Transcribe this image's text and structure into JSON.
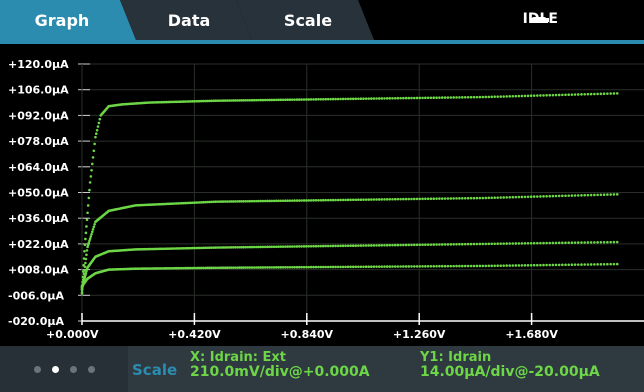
{
  "tabs": [
    {
      "label": "Graph",
      "active": true
    },
    {
      "label": "Data",
      "active": false
    },
    {
      "label": "Scale",
      "active": false
    }
  ],
  "status": {
    "label": "IDLE",
    "icon": "minus-icon"
  },
  "colors": {
    "accent": "#2c8cb0",
    "trace": "#6dd646",
    "tab_inactive": "#28323a"
  },
  "chart_data": {
    "type": "scatter",
    "title": "",
    "xlabel": "",
    "ylabel": "",
    "xlim": [
      0.0,
      2.1
    ],
    "ylim": [
      -20.0,
      120.0
    ],
    "x_tick_labels": [
      "+0.000V",
      "+0.420V",
      "+0.840V",
      "+1.260V",
      "+1.680V"
    ],
    "x_ticks": [
      0.0,
      0.42,
      0.84,
      1.26,
      1.68
    ],
    "y_tick_labels": [
      "+120.0µA",
      "+106.0µA",
      "+092.0µA",
      "+078.0µA",
      "+064.0µA",
      "+050.0µA",
      "+036.0µA",
      "+022.0µA",
      "+008.0µA",
      "-006.0µA",
      "-020.0µA"
    ],
    "y_ticks": [
      120,
      106,
      92,
      78,
      64,
      50,
      36,
      22,
      8,
      -6,
      -20
    ],
    "grid": true,
    "series": [
      {
        "x": [
          0.0,
          0.01,
          0.03,
          0.05,
          0.07,
          0.1,
          0.15,
          0.25,
          0.5,
          1.0,
          1.5,
          2.0
        ],
        "values": [
          -5,
          20,
          55,
          80,
          92,
          97,
          98,
          99,
          100,
          101,
          102,
          104
        ]
      },
      {
        "x": [
          0.0,
          0.02,
          0.05,
          0.1,
          0.2,
          0.5,
          1.0,
          1.5,
          2.0
        ],
        "values": [
          -3,
          20,
          34,
          40,
          43,
          45,
          46,
          47,
          49
        ]
      },
      {
        "x": [
          0.0,
          0.02,
          0.05,
          0.1,
          0.2,
          0.5,
          1.0,
          1.5,
          2.0
        ],
        "values": [
          -2,
          9,
          15,
          18,
          19,
          20,
          21,
          22,
          23
        ]
      },
      {
        "x": [
          0.0,
          0.02,
          0.05,
          0.1,
          0.2,
          0.5,
          1.0,
          1.5,
          2.0
        ],
        "values": [
          -1,
          3,
          6,
          8,
          8.5,
          9,
          9.5,
          10,
          11
        ]
      }
    ]
  },
  "bottom": {
    "page_dots": 4,
    "active_dot": 1,
    "scale_label": "Scale",
    "x_info": {
      "line1": "X: Idrain: Ext",
      "line2": "210.0mV/div@+0.000A"
    },
    "y_info": {
      "line1": "Y1: Idrain",
      "line2": "14.00µA/div@-20.00µA"
    }
  }
}
